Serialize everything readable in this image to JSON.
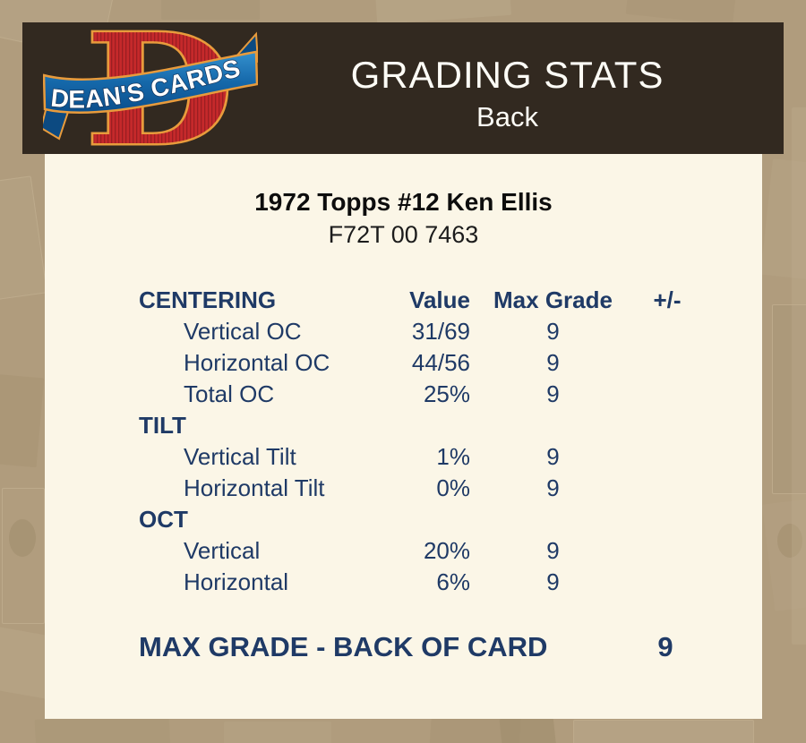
{
  "brand": {
    "logo_letter": "D",
    "logo_text": "DEAN'S CARDS"
  },
  "header": {
    "title": "GRADING STATS",
    "subtitle": "Back"
  },
  "card": {
    "title": "1972 Topps #12 Ken Ellis",
    "code": "F72T 00 7463"
  },
  "table": {
    "columns": {
      "value": "Value",
      "max_grade": "Max Grade",
      "plus_minus": "+/-"
    },
    "sections": [
      {
        "label": "CENTERING",
        "rows": [
          {
            "label": "Vertical OC",
            "value": "31/69",
            "max_grade": "9",
            "plus_minus": ""
          },
          {
            "label": "Horizontal OC",
            "value": "44/56",
            "max_grade": "9",
            "plus_minus": ""
          },
          {
            "label": "Total OC",
            "value": "25%",
            "max_grade": "9",
            "plus_minus": ""
          }
        ]
      },
      {
        "label": "TILT",
        "rows": [
          {
            "label": "Vertical Tilt",
            "value": "1%",
            "max_grade": "9",
            "plus_minus": ""
          },
          {
            "label": "Horizontal Tilt",
            "value": "0%",
            "max_grade": "9",
            "plus_minus": ""
          }
        ]
      },
      {
        "label": "OCT",
        "rows": [
          {
            "label": "Vertical",
            "value": "20%",
            "max_grade": "9",
            "plus_minus": ""
          },
          {
            "label": "Horizontal",
            "value": "6%",
            "max_grade": "9",
            "plus_minus": ""
          }
        ]
      }
    ]
  },
  "summary": {
    "label": "MAX GRADE - BACK OF CARD",
    "value": "9"
  },
  "colors": {
    "page_background": "#b09c7d",
    "header_background": "#322920",
    "content_background": "#fbf6e7",
    "text_navy": "#1f3a66",
    "text_black": "#0d0d0d",
    "header_text": "#fdfcf6",
    "logo_red": "#c5292b",
    "logo_gold": "#e89b3c",
    "logo_blue": "#1568aa"
  }
}
